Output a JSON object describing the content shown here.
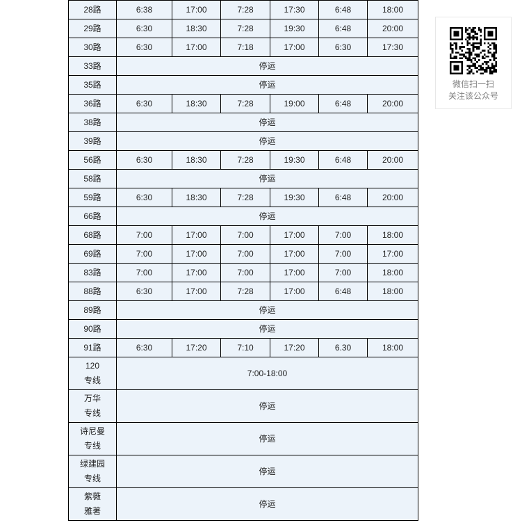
{
  "table": {
    "cell_background": "#ecf3fa",
    "border_color": "#000000",
    "text_color": "#222222",
    "rows": [
      {
        "route": [
          "28路"
        ],
        "times": [
          "6:38",
          "17:00",
          "7:28",
          "17:30",
          "6:48",
          "18:00"
        ]
      },
      {
        "route": [
          "29路"
        ],
        "times": [
          "6:30",
          "18:30",
          "7:28",
          "19:30",
          "6:48",
          "20:00"
        ]
      },
      {
        "route": [
          "30路"
        ],
        "times": [
          "6:30",
          "17:00",
          "7:18",
          "17:00",
          "6:30",
          "17:30"
        ]
      },
      {
        "route": [
          "33路"
        ],
        "span": "停运"
      },
      {
        "route": [
          "35路"
        ],
        "span": "停运"
      },
      {
        "route": [
          "36路"
        ],
        "times": [
          "6:30",
          "18:30",
          "7:28",
          "19:00",
          "6:48",
          "20:00"
        ]
      },
      {
        "route": [
          "38路"
        ],
        "span": "停运"
      },
      {
        "route": [
          "39路"
        ],
        "span": "停运"
      },
      {
        "route": [
          "56路"
        ],
        "times": [
          "6:30",
          "18:30",
          "7:28",
          "19:30",
          "6:48",
          "20:00"
        ]
      },
      {
        "route": [
          "58路"
        ],
        "span": "停运"
      },
      {
        "route": [
          "59路"
        ],
        "times": [
          "6:30",
          "18:30",
          "7:28",
          "19:30",
          "6:48",
          "20:00"
        ]
      },
      {
        "route": [
          "66路"
        ],
        "span": "停运"
      },
      {
        "route": [
          "68路"
        ],
        "times": [
          "7:00",
          "17:00",
          "7:00",
          "17:00",
          "7:00",
          "18:00"
        ]
      },
      {
        "route": [
          "69路"
        ],
        "times": [
          "7:00",
          "17:00",
          "7:00",
          "17:00",
          "7:00",
          "17:00"
        ]
      },
      {
        "route": [
          "83路"
        ],
        "times": [
          "7:00",
          "17:00",
          "7:00",
          "17:00",
          "7:00",
          "18:00"
        ]
      },
      {
        "route": [
          "88路"
        ],
        "times": [
          "6:30",
          "17:00",
          "7:28",
          "17:00",
          "6:48",
          "18:00"
        ]
      },
      {
        "route": [
          "89路"
        ],
        "span": "停运"
      },
      {
        "route": [
          "90路"
        ],
        "span": "停运"
      },
      {
        "route": [
          "91路"
        ],
        "times": [
          "6:30",
          "17:20",
          "7:10",
          "17:20",
          "6.30",
          "18:00"
        ]
      },
      {
        "route": [
          "120",
          "专线"
        ],
        "span": "7:00-18:00"
      },
      {
        "route": [
          "万华",
          "专线"
        ],
        "span": "停运"
      },
      {
        "route": [
          "诗尼曼",
          "专线"
        ],
        "span": "停运"
      },
      {
        "route": [
          "绿建园",
          "专线"
        ],
        "span": "停运"
      },
      {
        "route": [
          "紫薇",
          "雅著"
        ],
        "span": "停运"
      }
    ]
  },
  "qr_panel": {
    "icon": "qr-code",
    "caption_line1": "微信扫一扫",
    "caption_line2": "关注该公众号",
    "caption_color": "#808080",
    "border_color": "#e7e7e7"
  }
}
